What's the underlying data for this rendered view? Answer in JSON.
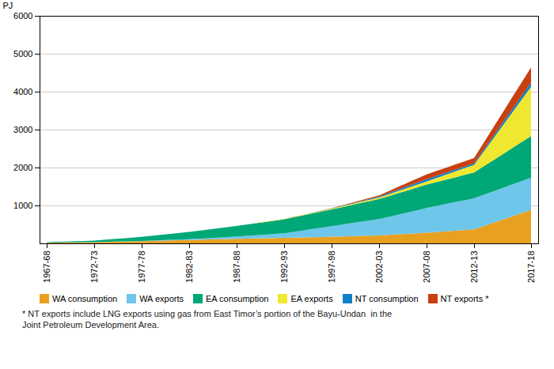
{
  "chart_data": {
    "type": "area",
    "stacked": true,
    "footnote": "* NT exports include LNG exports using gas from East Timor’s portion of the Bayu-Undan  in the\nJoint Petroleum Development Area.",
    "ylabel": "PJ",
    "ylim": [
      0,
      6000
    ],
    "yticks": [
      1000,
      2000,
      3000,
      4000,
      5000,
      6000
    ],
    "grid": true,
    "categories": [
      "1967-68",
      null,
      null,
      null,
      null,
      "1972-73",
      null,
      null,
      null,
      null,
      "1977-78",
      null,
      null,
      null,
      null,
      "1982-83",
      null,
      null,
      null,
      null,
      "1987-88",
      null,
      null,
      null,
      null,
      "1992-93",
      null,
      null,
      null,
      null,
      "1997-98",
      null,
      null,
      null,
      null,
      "2002-03",
      null,
      null,
      null,
      null,
      "2007-08",
      null,
      null,
      null,
      null,
      "2012-13",
      null,
      null,
      null,
      null,
      null,
      "2017-18"
    ],
    "series": [
      {
        "name": "WA consumption",
        "color": "#E8A020",
        "values": [
          18,
          20.4,
          22.8,
          25.2,
          27.6,
          30,
          35,
          40,
          45,
          50,
          55,
          62,
          69,
          76,
          83,
          90,
          96,
          102,
          108,
          114,
          120,
          125,
          130,
          135,
          140,
          145,
          151,
          157,
          163,
          169,
          175,
          182,
          189,
          196,
          203,
          210,
          224,
          238,
          252,
          266,
          280,
          298,
          316,
          334,
          352,
          370,
          455,
          540,
          625,
          710,
          795,
          880
        ]
      },
      {
        "name": "WA exports",
        "color": "#6EC6EA",
        "values": [
          0,
          0.4,
          0.8,
          1.2,
          1.6,
          2,
          3.2,
          4.4,
          5.6,
          6.8,
          8,
          10.4,
          12.8,
          15.2,
          17.6,
          20,
          28,
          36,
          44,
          52,
          60,
          72,
          84,
          96,
          108,
          120,
          152,
          184,
          216,
          248,
          280,
          310,
          340,
          370,
          400,
          430,
          474,
          518,
          562,
          606,
          650,
          684,
          718,
          752,
          786,
          820,
          825,
          830,
          835,
          840,
          845,
          850
        ]
      },
      {
        "name": "EA consumption",
        "color": "#00A878",
        "values": [
          15,
          20,
          25,
          30,
          35,
          40,
          54,
          68,
          82,
          96,
          110,
          126,
          142,
          158,
          174,
          190,
          208,
          226,
          244,
          262,
          280,
          298,
          316,
          334,
          352,
          370,
          384,
          398,
          412,
          426,
          440,
          458,
          476,
          494,
          512,
          530,
          548,
          566,
          584,
          602,
          620,
          632,
          644,
          656,
          668,
          680,
          750,
          820,
          890,
          960,
          1030,
          1100
        ]
      },
      {
        "name": "EA exports",
        "color": "#F0E830",
        "values": [
          0,
          0,
          0,
          0,
          0,
          0,
          0,
          0,
          0,
          0,
          0,
          0,
          0,
          0,
          0,
          0,
          0,
          0,
          0,
          0,
          0,
          2,
          4,
          6,
          8,
          10,
          12,
          14,
          16,
          18,
          20,
          24,
          28,
          32,
          36,
          40,
          48,
          56,
          64,
          72,
          80,
          104,
          128,
          152,
          176,
          200,
          383.3333333333333,
          566.6666666666667,
          750,
          933.3333333333333,
          1116.6666666666667,
          1300
        ]
      },
      {
        "name": "NT consumption",
        "color": "#1080C8",
        "values": [
          0,
          0,
          0,
          0,
          0,
          0,
          0,
          0,
          0,
          0,
          0,
          0,
          0,
          0,
          0,
          0,
          0,
          0,
          0,
          0,
          0,
          0,
          0,
          0,
          0,
          0,
          1,
          2,
          3,
          4,
          5,
          9,
          13,
          17,
          21,
          25,
          32,
          39,
          46,
          53,
          60,
          56,
          52,
          48,
          44,
          40,
          51.666666666666664,
          63.333333333333336,
          75,
          86.66666666666667,
          98.33333333333333,
          110
        ]
      },
      {
        "name": "NT exports *",
        "color": "#C84010",
        "values": [
          0,
          0,
          0,
          0,
          0,
          0,
          0,
          0,
          0,
          0,
          0,
          0,
          0,
          0,
          0,
          0,
          0,
          0,
          0,
          0,
          0,
          0,
          0,
          0,
          0,
          0,
          1,
          2,
          3,
          4,
          5,
          10,
          15,
          20,
          25,
          30,
          50,
          70,
          90,
          110,
          130,
          132,
          134,
          136,
          138,
          140,
          183.33333333333334,
          226.66666666666666,
          270,
          313.3333333333333,
          356.6666666666667,
          400
        ]
      }
    ]
  }
}
